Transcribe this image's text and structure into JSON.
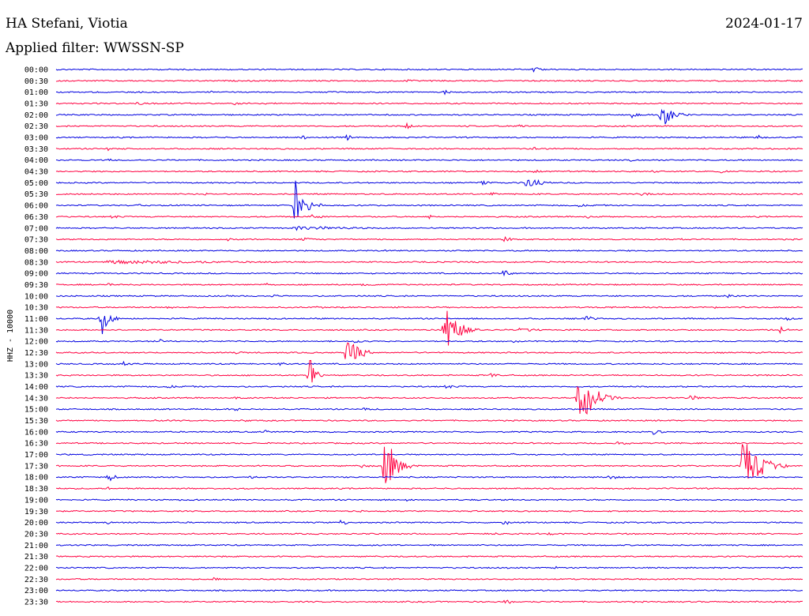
{
  "header": {
    "station": "HA Stefani, Viotia",
    "date": "2024-01-17",
    "filter": "Applied filter: WWSSN-SP"
  },
  "chart_data": {
    "type": "line",
    "title": "HA Stefani, Viotia",
    "subtitle": "Applied filter: WWSSN-SP",
    "date": "2024-01-17",
    "ylabel": "HHZ - 10000",
    "xlabel": "",
    "colors": [
      "#0000e0",
      "#ff0040"
    ],
    "grid": false,
    "rows": [
      {
        "label": "00:00",
        "events": [
          {
            "pos": 0.64,
            "amp": 5,
            "dur": 0.03
          }
        ]
      },
      {
        "label": "00:30",
        "events": [
          {
            "pos": 0.47,
            "amp": 4,
            "dur": 0.03
          }
        ]
      },
      {
        "label": "01:00",
        "events": [
          {
            "pos": 0.21,
            "amp": 5,
            "dur": 0.005
          },
          {
            "pos": 0.52,
            "amp": 5,
            "dur": 0.02
          }
        ]
      },
      {
        "label": "01:30",
        "events": [
          {
            "pos": 0.11,
            "amp": 3,
            "dur": 0.03
          },
          {
            "pos": 0.24,
            "amp": 3,
            "dur": 0.03
          }
        ]
      },
      {
        "label": "02:00",
        "events": [
          {
            "pos": 0.77,
            "amp": 5,
            "dur": 0.03
          },
          {
            "pos": 0.81,
            "amp": 26,
            "dur": 0.04
          }
        ]
      },
      {
        "label": "02:30",
        "events": [
          {
            "pos": 0.47,
            "amp": 6,
            "dur": 0.02
          },
          {
            "pos": 0.55,
            "amp": 3,
            "dur": 0.02
          },
          {
            "pos": 0.62,
            "amp": 3,
            "dur": 0.04
          }
        ]
      },
      {
        "label": "03:00",
        "events": [
          {
            "pos": 0.33,
            "amp": 4,
            "dur": 0.02
          },
          {
            "pos": 0.39,
            "amp": 4,
            "dur": 0.03
          },
          {
            "pos": 0.94,
            "amp": 4,
            "dur": 0.03
          }
        ]
      },
      {
        "label": "03:30",
        "events": [
          {
            "pos": 0.07,
            "amp": 3,
            "dur": 0.03
          },
          {
            "pos": 0.64,
            "amp": 3,
            "dur": 0.04
          }
        ]
      },
      {
        "label": "04:00",
        "events": [
          {
            "pos": 0.07,
            "amp": 3,
            "dur": 0.02
          },
          {
            "pos": 0.77,
            "amp": 3,
            "dur": 0.02
          }
        ]
      },
      {
        "label": "04:30",
        "events": [
          {
            "pos": 0.52,
            "amp": 3,
            "dur": 0.02
          },
          {
            "pos": 0.64,
            "amp": 4,
            "dur": 0.03
          },
          {
            "pos": 0.8,
            "amp": 3,
            "dur": 0.02
          },
          {
            "pos": 0.89,
            "amp": 3,
            "dur": 0.03
          }
        ]
      },
      {
        "label": "05:00",
        "events": [
          {
            "pos": 0.57,
            "amp": 3,
            "dur": 0.04
          },
          {
            "pos": 0.63,
            "amp": 9,
            "dur": 0.05
          }
        ]
      },
      {
        "label": "05:30",
        "events": [
          {
            "pos": 0.2,
            "amp": 3,
            "dur": 0.01
          },
          {
            "pos": 0.58,
            "amp": 3,
            "dur": 0.04
          },
          {
            "pos": 0.78,
            "amp": 3,
            "dur": 0.06
          }
        ]
      },
      {
        "label": "06:00",
        "events": [
          {
            "pos": 0.32,
            "amp": 36,
            "dur": 0.04
          },
          {
            "pos": 0.11,
            "amp": 3,
            "dur": 0.03
          },
          {
            "pos": 0.7,
            "amp": 3,
            "dur": 0.04
          }
        ]
      },
      {
        "label": "06:30",
        "events": [
          {
            "pos": 0.07,
            "amp": 3,
            "dur": 0.05
          },
          {
            "pos": 0.34,
            "amp": 3,
            "dur": 0.08
          },
          {
            "pos": 0.5,
            "amp": 3,
            "dur": 0.03
          },
          {
            "pos": 0.71,
            "amp": 3,
            "dur": 0.03
          }
        ]
      },
      {
        "label": "07:00",
        "events": [
          {
            "pos": 0.32,
            "amp": 3,
            "dur": 0.3
          }
        ]
      },
      {
        "label": "07:30",
        "events": [
          {
            "pos": 0.23,
            "amp": 3,
            "dur": 0.03
          },
          {
            "pos": 0.33,
            "amp": 3,
            "dur": 0.06
          },
          {
            "pos": 0.6,
            "amp": 4,
            "dur": 0.05
          },
          {
            "pos": 0.84,
            "amp": 3,
            "dur": 0.01
          }
        ]
      },
      {
        "label": "08:00",
        "events": [
          {
            "pos": 0.44,
            "amp": 2,
            "dur": 0.02
          }
        ]
      },
      {
        "label": "08:30",
        "events": [
          {
            "pos": 0.07,
            "amp": 3,
            "dur": 0.6
          }
        ]
      },
      {
        "label": "09:00",
        "events": [
          {
            "pos": 0.6,
            "amp": 7,
            "dur": 0.03
          },
          {
            "pos": 0.89,
            "amp": 3,
            "dur": 0.01
          },
          {
            "pos": 0.98,
            "amp": 3,
            "dur": 0.01
          }
        ]
      },
      {
        "label": "09:30",
        "events": [
          {
            "pos": 0.07,
            "amp": 3,
            "dur": 0.03
          },
          {
            "pos": 0.28,
            "amp": 3,
            "dur": 0.03
          },
          {
            "pos": 0.41,
            "amp": 3,
            "dur": 0.03
          }
        ]
      },
      {
        "label": "10:00",
        "events": [
          {
            "pos": 0.29,
            "amp": 3,
            "dur": 0.03
          },
          {
            "pos": 0.9,
            "amp": 3,
            "dur": 0.02
          }
        ]
      },
      {
        "label": "10:30",
        "events": [
          {
            "pos": 0.15,
            "amp": 3,
            "dur": 0.03
          },
          {
            "pos": 0.35,
            "amp": 3,
            "dur": 0.03
          },
          {
            "pos": 0.73,
            "amp": 3,
            "dur": 0.02
          },
          {
            "pos": 0.88,
            "amp": 3,
            "dur": 0.02
          }
        ]
      },
      {
        "label": "11:00",
        "events": [
          {
            "pos": 0.06,
            "amp": 26,
            "dur": 0.03
          },
          {
            "pos": 0.71,
            "amp": 5,
            "dur": 0.03
          },
          {
            "pos": 0.98,
            "amp": 5,
            "dur": 0.02
          }
        ]
      },
      {
        "label": "11:30",
        "events": [
          {
            "pos": 0.52,
            "amp": 40,
            "dur": 0.05
          },
          {
            "pos": 0.62,
            "amp": 3,
            "dur": 0.1
          },
          {
            "pos": 0.97,
            "amp": 5,
            "dur": 0.03
          }
        ]
      },
      {
        "label": "12:00",
        "events": [
          {
            "pos": 0.14,
            "amp": 3,
            "dur": 0.02
          },
          {
            "pos": 0.4,
            "amp": 3,
            "dur": 0.04
          },
          {
            "pos": 0.61,
            "amp": 3,
            "dur": 0.03
          }
        ]
      },
      {
        "label": "12:30",
        "events": [
          {
            "pos": 0.39,
            "amp": 30,
            "dur": 0.04
          },
          {
            "pos": 0.24,
            "amp": 3,
            "dur": 0.03
          }
        ]
      },
      {
        "label": "13:00",
        "events": [
          {
            "pos": 0.09,
            "amp": 3,
            "dur": 0.03
          },
          {
            "pos": 0.3,
            "amp": 3,
            "dur": 0.03
          }
        ]
      },
      {
        "label": "13:30",
        "events": [
          {
            "pos": 0.34,
            "amp": 32,
            "dur": 0.02
          },
          {
            "pos": 0.58,
            "amp": 4,
            "dur": 0.03
          }
        ]
      },
      {
        "label": "14:00",
        "events": [
          {
            "pos": 0.15,
            "amp": 3,
            "dur": 0.05
          },
          {
            "pos": 0.52,
            "amp": 3,
            "dur": 0.05
          }
        ]
      },
      {
        "label": "14:30",
        "events": [
          {
            "pos": 0.7,
            "amp": 38,
            "dur": 0.06
          },
          {
            "pos": 0.24,
            "amp": 3,
            "dur": 0.02
          },
          {
            "pos": 0.85,
            "amp": 4,
            "dur": 0.05
          }
        ]
      },
      {
        "label": "15:00",
        "events": [
          {
            "pos": 0.24,
            "amp": 3,
            "dur": 0.02
          },
          {
            "pos": 0.41,
            "amp": 3,
            "dur": 0.03
          }
        ]
      },
      {
        "label": "15:30",
        "events": [
          {
            "pos": 0.13,
            "amp": 3,
            "dur": 0.02
          },
          {
            "pos": 0.25,
            "amp": 3,
            "dur": 0.03
          }
        ]
      },
      {
        "label": "16:00",
        "events": [
          {
            "pos": 0.28,
            "amp": 3,
            "dur": 0.03
          },
          {
            "pos": 0.8,
            "amp": 4,
            "dur": 0.04
          }
        ]
      },
      {
        "label": "16:30",
        "events": [
          {
            "pos": 0.75,
            "amp": 3,
            "dur": 0.07
          }
        ]
      },
      {
        "label": "17:00",
        "events": [
          {
            "pos": 0.61,
            "amp": 3,
            "dur": 0.03
          }
        ]
      },
      {
        "label": "17:30",
        "events": [
          {
            "pos": 0.44,
            "amp": 56,
            "dur": 0.04
          },
          {
            "pos": 0.92,
            "amp": 50,
            "dur": 0.06
          },
          {
            "pos": 0.41,
            "amp": 4,
            "dur": 0.03
          }
        ]
      },
      {
        "label": "18:00",
        "events": [
          {
            "pos": 0.07,
            "amp": 6,
            "dur": 0.03
          },
          {
            "pos": 0.26,
            "amp": 3,
            "dur": 0.03
          },
          {
            "pos": 0.74,
            "amp": 3,
            "dur": 0.06
          }
        ]
      },
      {
        "label": "18:30",
        "events": [
          {
            "pos": 0.07,
            "amp": 3,
            "dur": 0.02
          }
        ]
      },
      {
        "label": "19:00",
        "events": [
          {
            "pos": 0.47,
            "amp": 3,
            "dur": 0.03
          }
        ]
      },
      {
        "label": "19:30",
        "events": [
          {
            "pos": 0.41,
            "amp": 3,
            "dur": 0.02
          }
        ]
      },
      {
        "label": "20:00",
        "events": [
          {
            "pos": 0.07,
            "amp": 4,
            "dur": 0.02
          },
          {
            "pos": 0.38,
            "amp": 5,
            "dur": 0.03
          },
          {
            "pos": 0.6,
            "amp": 5,
            "dur": 0.02
          }
        ]
      },
      {
        "label": "20:30",
        "events": [
          {
            "pos": 0.59,
            "amp": 3,
            "dur": 0.02
          },
          {
            "pos": 0.66,
            "amp": 3,
            "dur": 0.02
          }
        ]
      },
      {
        "label": "21:00",
        "events": [
          {
            "pos": 0.5,
            "amp": 2,
            "dur": 0.02
          }
        ]
      },
      {
        "label": "21:30",
        "events": [
          {
            "pos": 0.2,
            "amp": 2,
            "dur": 0.02
          }
        ]
      },
      {
        "label": "22:00",
        "events": [
          {
            "pos": 0.67,
            "amp": 2,
            "dur": 0.01
          }
        ]
      },
      {
        "label": "22:30",
        "events": [
          {
            "pos": 0.21,
            "amp": 3,
            "dur": 0.03
          }
        ]
      },
      {
        "label": "23:00",
        "events": [
          {
            "pos": 0.29,
            "amp": 2,
            "dur": 0.01
          }
        ]
      },
      {
        "label": "23:30",
        "events": [
          {
            "pos": 0.6,
            "amp": 4,
            "dur": 0.04
          }
        ]
      }
    ]
  }
}
